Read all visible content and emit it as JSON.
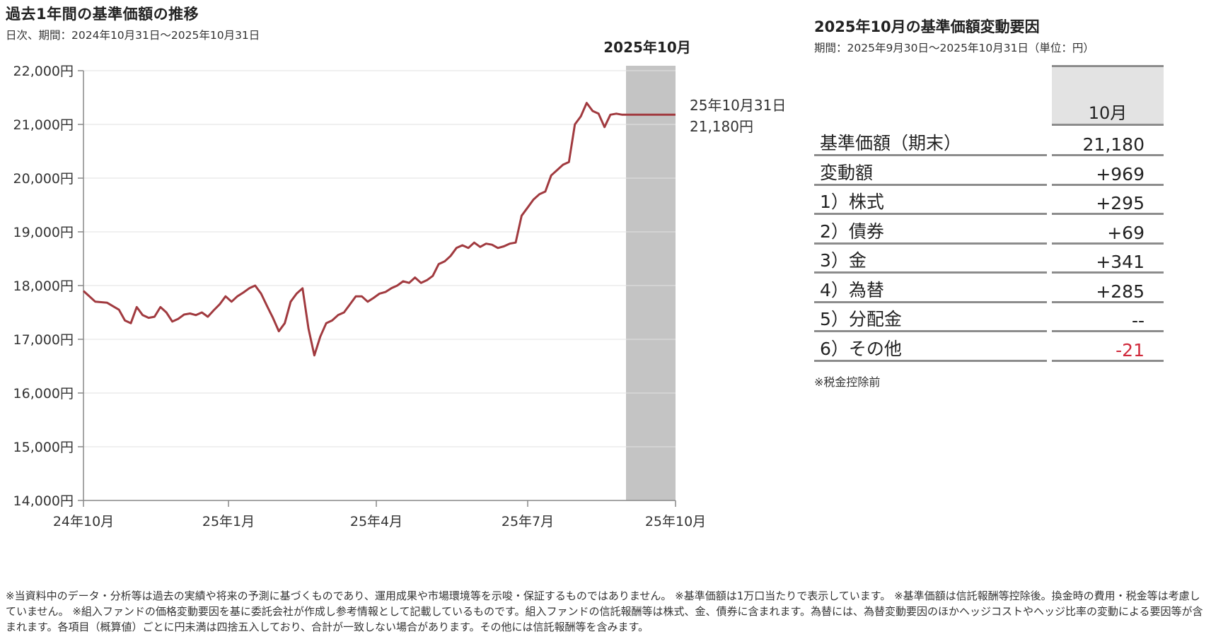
{
  "chart_data": {
    "type": "line",
    "title": "過去1年間の基準価額の推移",
    "subtitle": "日次、期間：2024年10月31日～2025年10月31日",
    "highlight_label": "2025年10月",
    "x_tick_labels": [
      "24年10月",
      "25年1月",
      "25年4月",
      "25年7月",
      "25年10月"
    ],
    "y_tick_labels": [
      "22,000円",
      "21,000円",
      "20,000円",
      "19,000円",
      "18,000円",
      "17,000円",
      "16,000円",
      "15,000円",
      "14,000円"
    ],
    "ylim": [
      14000,
      22000
    ],
    "last_point_date": "25年10月31日",
    "last_point_value": "21,180円",
    "line_color": "#a13a3f",
    "highlight_color": "#c4c4c4",
    "series": [
      {
        "x": [
          0,
          0.02,
          0.04,
          0.06,
          0.07,
          0.08,
          0.09,
          0.1,
          0.11,
          0.12,
          0.13,
          0.14,
          0.15,
          0.16,
          0.17,
          0.18,
          0.19,
          0.2,
          0.21,
          0.22,
          0.23,
          0.24,
          0.25,
          0.26,
          0.27,
          0.28,
          0.29,
          0.3,
          0.31,
          0.32,
          0.33,
          0.34,
          0.35,
          0.36,
          0.37,
          0.38,
          0.39,
          0.4,
          0.41,
          0.42,
          0.43,
          0.44,
          0.45,
          0.46,
          0.47,
          0.48,
          0.49,
          0.5,
          0.51,
          0.52,
          0.53,
          0.54,
          0.55,
          0.56,
          0.57,
          0.58,
          0.59,
          0.6,
          0.61,
          0.62,
          0.63,
          0.64,
          0.65,
          0.66,
          0.67,
          0.68,
          0.69,
          0.7,
          0.71,
          0.72,
          0.73,
          0.74,
          0.75,
          0.76,
          0.77,
          0.78,
          0.79,
          0.8,
          0.81,
          0.82,
          0.83,
          0.84,
          0.85,
          0.86,
          0.87,
          0.88,
          0.89,
          0.9,
          0.91,
          0.92,
          0.93,
          0.94,
          0.95,
          0.96,
          0.97,
          0.98,
          0.99,
          1.0
        ],
        "values": [
          17900,
          17700,
          17680,
          17550,
          17350,
          17300,
          17600,
          17450,
          17400,
          17420,
          17600,
          17500,
          17330,
          17380,
          17460,
          17480,
          17450,
          17500,
          17420,
          17540,
          17650,
          17800,
          17700,
          17800,
          17870,
          17950,
          18000,
          17850,
          17620,
          17400,
          17150,
          17300,
          17700,
          17850,
          17950,
          17200,
          16700,
          17050,
          17300,
          17350,
          17450,
          17500,
          17650,
          17800,
          17800,
          17700,
          17770,
          17850,
          17880,
          17950,
          18000,
          18080,
          18050,
          18150,
          18050,
          18100,
          18180,
          18400,
          18450,
          18550,
          18700,
          18750,
          18700,
          18800,
          18720,
          18780,
          18760,
          18700,
          18730,
          18780,
          18800,
          19300,
          19450,
          19600,
          19700,
          19750,
          20050,
          20150,
          20250,
          20300,
          21000,
          21150,
          21400,
          21250,
          21200,
          20950,
          21180,
          21200,
          21180,
          21180,
          21180,
          21180,
          21180,
          21180,
          21180,
          21180,
          21180,
          21180
        ],
        "domain_note": ""
      }
    ]
  },
  "table": {
    "title": "2025年10月の基準価額変動要因",
    "subtitle": "期間：2025年9月30日～2025年10月31日（単位：円）",
    "column_header": "10月",
    "rows": [
      {
        "label": "基準価額（期末）",
        "value": "21,180",
        "color": "#222222"
      },
      {
        "label": "変動額",
        "value": "+969",
        "color": "#222222"
      },
      {
        "label": "1）株式",
        "value": "+295",
        "color": "#222222"
      },
      {
        "label": "2）債券",
        "value": "+69",
        "color": "#222222"
      },
      {
        "label": "3）金",
        "value": "+341",
        "color": "#222222"
      },
      {
        "label": "4）為替",
        "value": "+285",
        "color": "#222222"
      },
      {
        "label": "5）分配金",
        "value": "--",
        "color": "#222222"
      },
      {
        "label": "6）その他",
        "value": "-21",
        "color": "#d0293b"
      }
    ],
    "note": "※税金控除前"
  },
  "footnote": "※当資料中のデータ・分析等は過去の実績や将来の予測に基づくものであり、運用成果や市場環境等を示唆・保証するものではありません。 ※基準価額は1万口当たりで表示しています。 ※基準価額は信託報酬等控除後。換金時の費用・税金等は考慮していません。 ※組入ファンドの価格変動要因を基に委託会社が作成し参考情報として記載しているものです。組入ファンドの信託報酬等は株式、金、債券に含まれます。為替には、為替変動要因のほかヘッジコストやヘッジ比率の変動による要因等が含まれます。各項目（概算値）ごとに円未満は四捨五入しており、合計が一致しない場合があります。その他には信託報酬等を含みます。"
}
